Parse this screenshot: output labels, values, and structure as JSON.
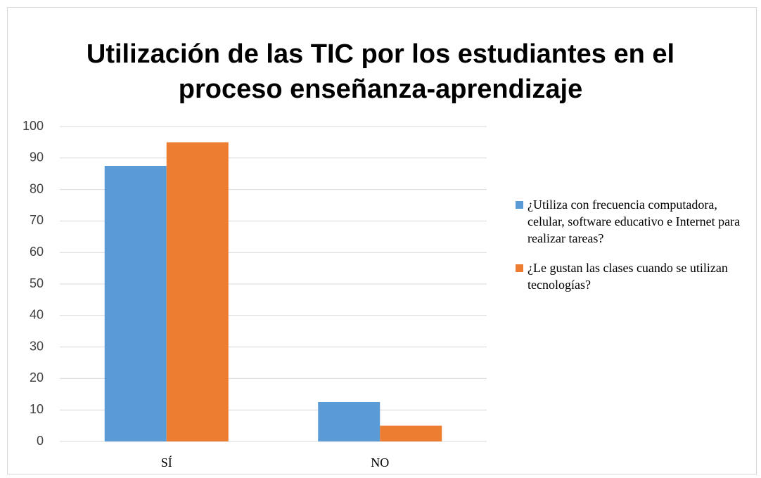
{
  "chart_data": {
    "type": "bar",
    "title": "Utilización de las TIC por los estudiantes en el proceso enseñanza-aprendizaje",
    "categories": [
      "SÍ",
      "NO"
    ],
    "series": [
      {
        "name": "¿Utiliza con frecuencia computadora, celular, software educativo e Internet para realizar tareas?",
        "color": "#5b9bd5",
        "values": [
          87.5,
          12.5
        ]
      },
      {
        "name": "¿Le gustan las clases cuando se utilizan tecnologías?",
        "color": "#ed7d31",
        "values": [
          95,
          5
        ]
      }
    ],
    "ylim": [
      0,
      100
    ],
    "yticks": [
      0,
      10,
      20,
      30,
      40,
      50,
      60,
      70,
      80,
      90,
      100
    ],
    "grid": true,
    "legend": "right"
  }
}
